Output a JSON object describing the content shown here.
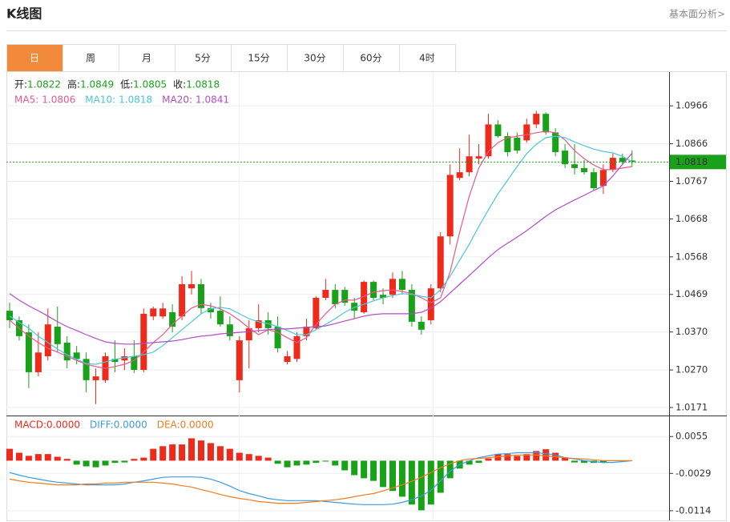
{
  "header": {
    "title": "K线图",
    "link": "基本面分析>"
  },
  "tabs": [
    "日",
    "周",
    "月",
    "5分",
    "15分",
    "30分",
    "60分",
    "4时"
  ],
  "active_tab": 0,
  "chart_data": [
    {
      "type": "candlestick",
      "readout": [
        {
          "label": "开:",
          "value": 1.0822
        },
        {
          "label": "高:",
          "value": 1.0849
        },
        {
          "label": "低:",
          "value": 1.0805
        },
        {
          "label": "收:",
          "value": 1.0818
        }
      ],
      "readout_color": "#1aa11a",
      "up_color": "#ee2a1b",
      "down_color": "#1aa11a",
      "open": [
        1.0426,
        1.0401,
        1.0369,
        1.0264,
        1.0306,
        1.0384,
        1.0342,
        1.0316,
        1.0299,
        1.0243,
        1.0243,
        1.0299,
        1.0295,
        1.0306,
        1.027,
        1.0411,
        1.0411,
        1.0422,
        1.0411,
        1.0485,
        1.0496,
        1.0433,
        1.0426,
        1.039,
        1.0243,
        1.0348,
        1.038,
        1.0401,
        1.0384,
        1.0291,
        1.0299,
        1.0359,
        1.038,
        1.046,
        1.0481,
        1.0481,
        1.0447,
        1.0422,
        1.0502,
        1.0468,
        1.0468,
        1.051,
        1.0481,
        1.0397,
        1.0401,
        1.0485,
        1.0622,
        1.0776,
        1.0791,
        1.0827,
        1.0833,
        1.0917,
        1.0886,
        1.0882,
        1.0875,
        1.0917,
        1.0945,
        1.0896,
        1.0848,
        1.0812,
        1.0802,
        1.0791,
        1.0755,
        1.0797,
        1.0829,
        1.0822
      ],
      "high": [
        1.0447,
        1.0411,
        1.039,
        1.0369,
        1.0432,
        1.0437,
        1.0359,
        1.0333,
        1.0316,
        1.0274,
        1.0316,
        1.0348,
        1.0327,
        1.0348,
        1.0432,
        1.0437,
        1.0447,
        1.0443,
        1.0517,
        1.0531,
        1.051,
        1.0447,
        1.0464,
        1.0411,
        1.0359,
        1.0401,
        1.0443,
        1.0422,
        1.0411,
        1.032,
        1.0369,
        1.0405,
        1.0464,
        1.051,
        1.0496,
        1.0489,
        1.046,
        1.0506,
        1.0506,
        1.0485,
        1.0527,
        1.0531,
        1.0496,
        1.0411,
        1.0496,
        1.0633,
        1.0812,
        1.0854,
        1.089,
        1.0865,
        1.0945,
        1.0928,
        1.0896,
        1.0896,
        1.0932,
        1.0953,
        1.0949,
        1.0907,
        1.0865,
        1.0865,
        1.0823,
        1.0802,
        1.0812,
        1.084,
        1.084,
        1.0849
      ],
      "low": [
        1.038,
        1.0348,
        1.0222,
        1.0253,
        1.0295,
        1.0316,
        1.0274,
        1.0285,
        1.0211,
        1.018,
        1.0236,
        1.0264,
        1.027,
        1.0262,
        1.0264,
        1.0401,
        1.0405,
        1.0369,
        1.0401,
        1.0469,
        1.0418,
        1.0405,
        1.0384,
        1.0348,
        1.0211,
        1.0274,
        1.0369,
        1.0363,
        1.0316,
        1.0285,
        1.0291,
        1.0348,
        1.0376,
        1.0454,
        1.0433,
        1.0439,
        1.0405,
        1.0418,
        1.0454,
        1.0443,
        1.046,
        1.0469,
        1.0384,
        1.0363,
        1.039,
        1.0475,
        1.0601,
        1.077,
        1.078,
        1.0812,
        1.0827,
        1.0882,
        1.0833,
        1.084,
        1.0869,
        1.0907,
        1.089,
        1.0833,
        1.0802,
        1.0785,
        1.0785,
        1.0742,
        1.0734,
        1.0791,
        1.0812,
        1.0805
      ],
      "close": [
        1.0401,
        1.0359,
        1.0264,
        1.0316,
        1.039,
        1.0338,
        1.0295,
        1.0299,
        1.0243,
        1.0253,
        1.0306,
        1.0291,
        1.0306,
        1.027,
        1.0418,
        1.0432,
        1.0432,
        1.0384,
        1.0496,
        1.0496,
        1.0433,
        1.0422,
        1.039,
        1.0359,
        1.0348,
        1.038,
        1.0401,
        1.038,
        1.0327,
        1.0306,
        1.0359,
        1.0384,
        1.046,
        1.0481,
        1.0443,
        1.0447,
        1.0426,
        1.0502,
        1.046,
        1.046,
        1.051,
        1.0481,
        1.0397,
        1.0376,
        1.0485,
        1.0622,
        1.0784,
        1.0791,
        1.0833,
        1.0833,
        1.0917,
        1.0886,
        1.0844,
        1.0848,
        1.0917,
        1.0945,
        1.0896,
        1.0844,
        1.0812,
        1.0802,
        1.0791,
        1.0749,
        1.0797,
        1.0829,
        1.0818,
        1.0818
      ],
      "series": [
        {
          "name": "MA5:",
          "color": "#e8588a",
          "current": 1.0806,
          "values": [
            1.0401,
            1.038,
            1.0359,
            1.0342,
            1.0327,
            1.0317,
            1.0306,
            1.0295,
            1.0285,
            1.0279,
            1.0274,
            1.0279,
            1.0285,
            1.0295,
            1.0317,
            1.0342,
            1.0363,
            1.039,
            1.0412,
            1.0433,
            1.0443,
            1.0439,
            1.0431,
            1.0418,
            1.0401,
            1.038,
            1.0363,
            1.0376,
            1.0369,
            1.0355,
            1.0342,
            1.0355,
            1.039,
            1.0418,
            1.0443,
            1.0454,
            1.0454,
            1.0464,
            1.0475,
            1.0479,
            1.0481,
            1.0477,
            1.0471,
            1.046,
            1.0447,
            1.046,
            1.0528,
            1.0633,
            1.0728,
            1.0802,
            1.0846,
            1.0869,
            1.0882,
            1.0886,
            1.089,
            1.0895,
            1.0899,
            1.0895,
            1.0876,
            1.0848,
            1.0827,
            1.081,
            1.0798,
            1.0798,
            1.0802,
            1.0806
          ]
        },
        {
          "name": "MA10:",
          "color": "#4cc6d8",
          "current": 1.0818,
          "values": [
            1.0412,
            1.0395,
            1.038,
            1.0359,
            1.0342,
            1.0325,
            1.031,
            1.0298,
            1.0287,
            1.0285,
            1.0291,
            1.0298,
            1.0302,
            1.0306,
            1.031,
            1.0317,
            1.0334,
            1.0355,
            1.0376,
            1.0397,
            1.0418,
            1.0431,
            1.0435,
            1.0431,
            1.0418,
            1.0405,
            1.0397,
            1.0392,
            1.0384,
            1.0374,
            1.0363,
            1.0363,
            1.0376,
            1.039,
            1.0405,
            1.0422,
            1.0435,
            1.0443,
            1.0452,
            1.046,
            1.0466,
            1.0471,
            1.0469,
            1.0464,
            1.046,
            1.0481,
            1.0517,
            1.0559,
            1.0601,
            1.0648,
            1.0692,
            1.0734,
            1.077,
            1.0806,
            1.084,
            1.0865,
            1.0882,
            1.0886,
            1.0882,
            1.0871,
            1.0861,
            1.0852,
            1.0846,
            1.0842,
            1.0833,
            1.0818
          ]
        },
        {
          "name": "MA20:",
          "color": "#b34cc4",
          "current": 1.0841,
          "values": [
            1.0471,
            1.0454,
            1.0439,
            1.0426,
            1.0412,
            1.0397,
            1.0384,
            1.0374,
            1.0363,
            1.0353,
            1.0344,
            1.034,
            1.0338,
            1.0338,
            1.034,
            1.0342,
            1.0344,
            1.0346,
            1.035,
            1.0355,
            1.0359,
            1.0361,
            1.0365,
            1.0367,
            1.0369,
            1.0371,
            1.0374,
            1.0376,
            1.0378,
            1.0378,
            1.038,
            1.0382,
            1.0384,
            1.0386,
            1.0392,
            1.0399,
            1.0405,
            1.0412,
            1.0416,
            1.0418,
            1.0418,
            1.0418,
            1.0418,
            1.0422,
            1.0433,
            1.045,
            1.0473,
            1.0496,
            1.0519,
            1.0542,
            1.0566,
            1.0587,
            1.0604,
            1.062,
            1.0637,
            1.0656,
            1.0675,
            1.0692,
            1.0705,
            1.0718,
            1.073,
            1.0743,
            1.0755,
            1.0781,
            1.0812,
            1.0841
          ]
        }
      ],
      "ylim": [
        1.0152,
        1.1055
      ],
      "yticks": [
        1.0171,
        {
          "value": 1.027,
          "label": "1.0270"
        },
        {
          "value": 1.037,
          "label": "1.0370"
        },
        1.0469,
        1.0568,
        1.0668,
        1.0767,
        1.0866,
        1.0966
      ],
      "grid": true
    },
    {
      "type": "macd",
      "histogram": {
        "name": "MACD:",
        "value": 0,
        "value_label": "0.0000",
        "color": "#ee2a1b",
        "values": [
          0.0027,
          0.0018,
          0.0011,
          0.0015,
          0.0015,
          0.0009,
          0.0004,
          -0.0009,
          -0.0013,
          -0.0015,
          -0.0011,
          -0.0005,
          -0.0004,
          0.0004,
          0.0007,
          0.0027,
          0.0033,
          0.0037,
          0.0037,
          0.0051,
          0.0046,
          0.004,
          0.0033,
          0.0027,
          0.0018,
          0.0015,
          0.0011,
          0.0007,
          -0.0007,
          -0.0015,
          -0.0011,
          -0.0009,
          -0.0005,
          -0.0002,
          -0.0011,
          -0.0022,
          -0.0033,
          -0.004,
          -0.0046,
          -0.006,
          -0.0069,
          -0.0082,
          -0.01,
          -0.0113,
          -0.01,
          -0.0073,
          -0.004,
          -0.0018,
          -0.0009,
          -0.0005,
          0.0005,
          0.0015,
          0.0015,
          0.0011,
          0.0015,
          0.0022,
          0.0026,
          0.0018,
          0.0007,
          -0.0004,
          -0.0005,
          -0.0005,
          -0.0005,
          -0.0001,
          0,
          0
        ]
      },
      "up_color": "#ee2a1b",
      "down_color": "#1aa11a",
      "series": [
        {
          "name": "DIFF:",
          "color": "#3b9be0",
          "current": 0,
          "current_label": "0.0000",
          "values": [
            -0.0027,
            -0.0033,
            -0.0038,
            -0.0042,
            -0.0046,
            -0.0049,
            -0.0051,
            -0.0053,
            -0.0055,
            -0.0055,
            -0.0055,
            -0.0055,
            -0.0053,
            -0.0049,
            -0.0046,
            -0.0042,
            -0.0038,
            -0.0037,
            -0.0037,
            -0.0037,
            -0.0038,
            -0.0042,
            -0.0049,
            -0.0058,
            -0.0068,
            -0.0075,
            -0.008,
            -0.0086,
            -0.0089,
            -0.0091,
            -0.0091,
            -0.0091,
            -0.0091,
            -0.0093,
            -0.0095,
            -0.0097,
            -0.0099,
            -0.01,
            -0.01,
            -0.01,
            -0.0099,
            -0.0095,
            -0.0089,
            -0.008,
            -0.0068,
            -0.0046,
            -0.0024,
            -0.0009,
            0,
            0.0007,
            0.0011,
            0.0015,
            0.0016,
            0.0018,
            0.0018,
            0.0018,
            0.0016,
            0.0013,
            0.0007,
            0.0004,
            0,
            -0.0002,
            -0.0004,
            -0.0004,
            -0.0002,
            0
          ]
        },
        {
          "name": "DEA:",
          "color": "#f07b1e",
          "current": 0,
          "current_label": "0.0000",
          "values": [
            -0.0042,
            -0.0046,
            -0.0049,
            -0.0051,
            -0.0053,
            -0.0055,
            -0.0055,
            -0.0055,
            -0.0053,
            -0.0053,
            -0.0051,
            -0.0051,
            -0.0049,
            -0.0049,
            -0.0049,
            -0.0049,
            -0.0051,
            -0.0053,
            -0.0057,
            -0.006,
            -0.0066,
            -0.0071,
            -0.0077,
            -0.0082,
            -0.0086,
            -0.0089,
            -0.0093,
            -0.0095,
            -0.0097,
            -0.0097,
            -0.0097,
            -0.0095,
            -0.0093,
            -0.0091,
            -0.0089,
            -0.0086,
            -0.0082,
            -0.0078,
            -0.0075,
            -0.0069,
            -0.0062,
            -0.0055,
            -0.0047,
            -0.0038,
            -0.0027,
            -0.0016,
            -0.0007,
            0,
            0.0004,
            0.0005,
            0.0007,
            0.0009,
            0.0011,
            0.0013,
            0.0013,
            0.0013,
            0.0011,
            0.0009,
            0.0007,
            0.0005,
            0.0004,
            0.0002,
            0,
            0,
            0,
            0
          ]
        }
      ],
      "ylim": [
        -0.0136,
        0.0101
      ],
      "yticks": [
        -0.0114,
        -0.0029,
        0.0055
      ],
      "grid": true
    }
  ]
}
